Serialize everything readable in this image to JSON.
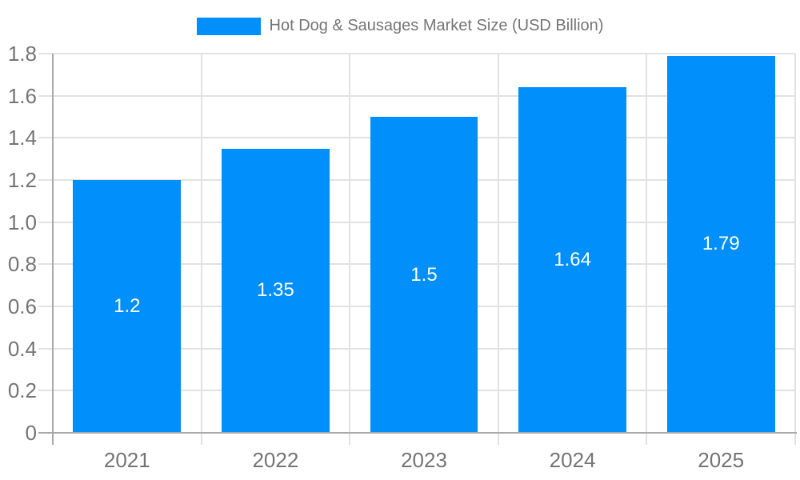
{
  "chart_data": {
    "type": "bar",
    "title": "Hot Dog & Sausages Market Size (USD Billion)",
    "categories": [
      "2021",
      "2022",
      "2023",
      "2024",
      "2025"
    ],
    "values": [
      1.2,
      1.35,
      1.5,
      1.64,
      1.79
    ],
    "value_labels": [
      "1.2",
      "1.35",
      "1.5",
      "1.64",
      "1.79"
    ],
    "xlabel": "",
    "ylabel": "",
    "ylim": [
      0,
      1.8
    ],
    "yticks": {
      "values": [
        0,
        0.2,
        0.4,
        0.6,
        0.8,
        1.0,
        1.2,
        1.4,
        1.6,
        1.8
      ],
      "labels": [
        "0",
        "0.2",
        "0.4",
        "0.6",
        "0.8",
        "1.0",
        "1.2",
        "1.4",
        "1.6",
        "1.8"
      ]
    },
    "grid": true,
    "legend_position": "top",
    "colors": {
      "bar": "#008FFB",
      "grid": "#e2e2e2",
      "axis": "#a9a9a9",
      "tick_text": "#757575",
      "legend_text": "#757575",
      "value_text": "#ffffff",
      "background": "#ffffff"
    }
  }
}
